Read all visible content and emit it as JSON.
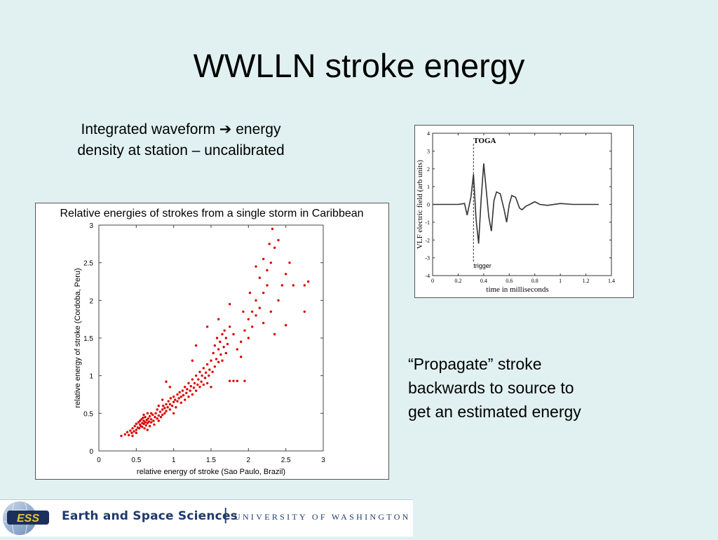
{
  "slide": {
    "title": "WWLLN stroke energy",
    "caption_top_line1": "Integrated waveform",
    "caption_top_arrow": "➔",
    "caption_top_line1_end": "energy",
    "caption_top_line2": "density at station – uncalibrated",
    "caption_bottom_line1": "“Propagate” stroke",
    "caption_bottom_line2": "backwards to source to",
    "caption_bottom_line3": "get an estimated energy"
  },
  "footer": {
    "logo_text": "ESS",
    "department": "Earth and Space Sciences",
    "separator": "|",
    "university": "UNIVERSITY OF WASHINGTON"
  },
  "colors": {
    "background": "#e1f1f1",
    "scatter_points": "#e00000",
    "waveform": "#333333",
    "footer_text": "#1f3a6b"
  },
  "chart_data": [
    {
      "type": "scatter",
      "title": "Relative energies of strokes from a single storm in Caribbean",
      "xlabel": "relative energy of stroke (Sao Paulo, Brazil)",
      "ylabel": "relative energy of stroke (Cordoba, Peru)",
      "xlim": [
        0,
        3
      ],
      "ylim": [
        0,
        3
      ],
      "xticks": [
        "0",
        "0.5",
        "1",
        "1.5",
        "2",
        "2.5",
        "3"
      ],
      "yticks": [
        "0",
        "0.5",
        "1",
        "1.5",
        "2",
        "2.5",
        "3"
      ],
      "grid": false,
      "series": [
        {
          "points": [
            [
              0.3,
              0.2
            ],
            [
              0.35,
              0.22
            ],
            [
              0.38,
              0.25
            ],
            [
              0.4,
              0.21
            ],
            [
              0.42,
              0.27
            ],
            [
              0.44,
              0.24
            ],
            [
              0.45,
              0.3
            ],
            [
              0.47,
              0.26
            ],
            [
              0.48,
              0.33
            ],
            [
              0.5,
              0.28
            ],
            [
              0.5,
              0.36
            ],
            [
              0.52,
              0.31
            ],
            [
              0.53,
              0.38
            ],
            [
              0.54,
              0.3
            ],
            [
              0.55,
              0.35
            ],
            [
              0.55,
              0.4
            ],
            [
              0.56,
              0.33
            ],
            [
              0.57,
              0.42
            ],
            [
              0.58,
              0.37
            ],
            [
              0.58,
              0.32
            ],
            [
              0.59,
              0.44
            ],
            [
              0.6,
              0.36
            ],
            [
              0.6,
              0.4
            ],
            [
              0.61,
              0.3
            ],
            [
              0.62,
              0.38
            ],
            [
              0.62,
              0.45
            ],
            [
              0.63,
              0.34
            ],
            [
              0.64,
              0.41
            ],
            [
              0.65,
              0.37
            ],
            [
              0.65,
              0.5
            ],
            [
              0.66,
              0.43
            ],
            [
              0.67,
              0.39
            ],
            [
              0.68,
              0.46
            ],
            [
              0.68,
              0.33
            ],
            [
              0.7,
              0.42
            ],
            [
              0.7,
              0.38
            ],
            [
              0.72,
              0.48
            ],
            [
              0.73,
              0.4
            ],
            [
              0.74,
              0.35
            ],
            [
              0.75,
              0.45
            ],
            [
              0.76,
              0.5
            ],
            [
              0.78,
              0.43
            ],
            [
              0.78,
              0.55
            ],
            [
              0.8,
              0.47
            ],
            [
              0.8,
              0.4
            ],
            [
              0.82,
              0.52
            ],
            [
              0.83,
              0.45
            ],
            [
              0.85,
              0.55
            ],
            [
              0.85,
              0.48
            ],
            [
              0.86,
              0.6
            ],
            [
              0.88,
              0.5
            ],
            [
              0.88,
              0.57
            ],
            [
              0.9,
              0.62
            ],
            [
              0.9,
              0.53
            ],
            [
              0.92,
              0.58
            ],
            [
              0.93,
              0.66
            ],
            [
              0.95,
              0.55
            ],
            [
              0.95,
              0.62
            ],
            [
              0.96,
              0.7
            ],
            [
              0.98,
              0.6
            ],
            [
              1.0,
              0.65
            ],
            [
              1.0,
              0.72
            ],
            [
              1.02,
              0.68
            ],
            [
              1.03,
              0.58
            ],
            [
              1.05,
              0.75
            ],
            [
              1.05,
              0.66
            ],
            [
              1.07,
              0.7
            ],
            [
              1.08,
              0.78
            ],
            [
              1.1,
              0.72
            ],
            [
              1.1,
              0.64
            ],
            [
              1.12,
              0.8
            ],
            [
              1.13,
              0.74
            ],
            [
              1.15,
              0.68
            ],
            [
              1.15,
              0.85
            ],
            [
              1.17,
              0.77
            ],
            [
              1.18,
              0.82
            ],
            [
              1.2,
              0.72
            ],
            [
              1.2,
              0.9
            ],
            [
              1.22,
              0.8
            ],
            [
              1.23,
              0.86
            ],
            [
              1.25,
              0.75
            ],
            [
              1.25,
              0.95
            ],
            [
              1.27,
              0.84
            ],
            [
              1.28,
              0.9
            ],
            [
              1.3,
              0.8
            ],
            [
              1.3,
              1.0
            ],
            [
              1.32,
              0.88
            ],
            [
              1.33,
              0.95
            ],
            [
              1.35,
              0.85
            ],
            [
              1.35,
              1.05
            ],
            [
              1.37,
              0.92
            ],
            [
              1.38,
              1.0
            ],
            [
              1.4,
              0.88
            ],
            [
              1.4,
              1.1
            ],
            [
              1.42,
              0.97
            ],
            [
              1.43,
              1.04
            ],
            [
              1.45,
              0.9
            ],
            [
              1.45,
              1.15
            ],
            [
              1.47,
              1.0
            ],
            [
              1.48,
              1.08
            ],
            [
              1.5,
              0.85
            ],
            [
              1.5,
              1.2
            ],
            [
              1.52,
              1.05
            ],
            [
              1.53,
              1.3
            ],
            [
              1.55,
              1.12
            ],
            [
              1.55,
              1.4
            ],
            [
              1.57,
              1.22
            ],
            [
              1.58,
              1.5
            ],
            [
              1.6,
              1.18
            ],
            [
              1.6,
              1.35
            ],
            [
              1.62,
              1.45
            ],
            [
              1.63,
              1.28
            ],
            [
              1.65,
              1.55
            ],
            [
              1.65,
              1.2
            ],
            [
              1.67,
              1.38
            ],
            [
              1.68,
              1.6
            ],
            [
              1.7,
              1.3
            ],
            [
              1.7,
              1.5
            ],
            [
              1.72,
              1.42
            ],
            [
              1.75,
              1.65
            ],
            [
              1.75,
              0.93
            ],
            [
              1.8,
              1.55
            ],
            [
              1.8,
              0.93
            ],
            [
              1.85,
              1.35
            ],
            [
              1.85,
              0.93
            ],
            [
              1.9,
              1.45
            ],
            [
              1.9,
              1.25
            ],
            [
              1.95,
              1.6
            ],
            [
              1.95,
              0.93
            ],
            [
              2.0,
              1.75
            ],
            [
              2.0,
              1.5
            ],
            [
              2.05,
              1.85
            ],
            [
              2.05,
              1.65
            ],
            [
              2.1,
              2.0
            ],
            [
              2.1,
              1.8
            ],
            [
              2.15,
              1.9
            ],
            [
              2.15,
              2.3
            ],
            [
              2.2,
              2.1
            ],
            [
              2.2,
              1.7
            ],
            [
              2.25,
              2.4
            ],
            [
              2.25,
              2.2
            ],
            [
              2.3,
              2.5
            ],
            [
              2.3,
              1.85
            ],
            [
              2.35,
              2.7
            ],
            [
              2.35,
              1.55
            ],
            [
              2.4,
              2.8
            ],
            [
              2.4,
              2.0
            ],
            [
              2.45,
              2.2
            ],
            [
              2.5,
              1.67
            ],
            [
              2.5,
              2.35
            ],
            [
              2.6,
              2.2
            ],
            [
              2.75,
              2.2
            ],
            [
              2.8,
              2.25
            ],
            [
              2.75,
              1.85
            ],
            [
              1.75,
              1.95
            ],
            [
              1.6,
              1.75
            ],
            [
              1.45,
              1.65
            ],
            [
              1.3,
              1.4
            ],
            [
              1.25,
              1.2
            ],
            [
              0.9,
              0.92
            ],
            [
              0.95,
              0.85
            ],
            [
              1.0,
              0.5
            ],
            [
              0.85,
              0.68
            ],
            [
              0.8,
              0.6
            ],
            [
              0.7,
              0.5
            ],
            [
              0.6,
              0.48
            ],
            [
              0.65,
              0.28
            ],
            [
              0.5,
              0.24
            ],
            [
              0.45,
              0.2
            ],
            [
              2.2,
              2.55
            ],
            [
              2.28,
              2.75
            ],
            [
              2.1,
              2.45
            ],
            [
              2.02,
              2.1
            ],
            [
              1.93,
              1.85
            ],
            [
              2.32,
              2.95
            ],
            [
              2.55,
              2.5
            ]
          ]
        }
      ]
    },
    {
      "type": "line",
      "title": "",
      "xlabel": "time in milliseconds",
      "ylabel": "VLF electric field (arb units)",
      "xlim": [
        0,
        1.4
      ],
      "ylim": [
        -4,
        4
      ],
      "xticks": [
        "0",
        "0.2",
        "0.4",
        "0.6",
        "0.8",
        "1",
        "1.2",
        "1.4"
      ],
      "yticks": [
        "-4",
        "-3",
        "-2",
        "-1",
        "0",
        "1",
        "2",
        "3",
        "4"
      ],
      "annotations": [
        {
          "text": "TOGA",
          "x": 0.32,
          "y": 3.6
        },
        {
          "text": "trigger",
          "x": 0.32,
          "y": -3.4
        }
      ],
      "marker_x": 0.32,
      "series": [
        {
          "x": [
            0.0,
            0.1,
            0.2,
            0.25,
            0.27,
            0.3,
            0.32,
            0.34,
            0.36,
            0.38,
            0.4,
            0.42,
            0.44,
            0.46,
            0.48,
            0.5,
            0.53,
            0.56,
            0.58,
            0.6,
            0.62,
            0.65,
            0.68,
            0.7,
            0.73,
            0.76,
            0.8,
            0.84,
            0.9,
            1.0,
            1.1,
            1.2,
            1.3
          ],
          "y": [
            0.0,
            0.0,
            0.0,
            0.05,
            -0.6,
            0.4,
            1.7,
            -0.8,
            -2.2,
            0.3,
            2.3,
            0.8,
            -0.7,
            -1.5,
            0.2,
            0.7,
            0.6,
            -0.3,
            -1.0,
            0.0,
            0.5,
            0.4,
            -0.2,
            -0.3,
            -0.1,
            0.0,
            0.15,
            0.0,
            -0.05,
            0.05,
            0.0,
            0.0,
            0.0
          ]
        }
      ]
    }
  ]
}
